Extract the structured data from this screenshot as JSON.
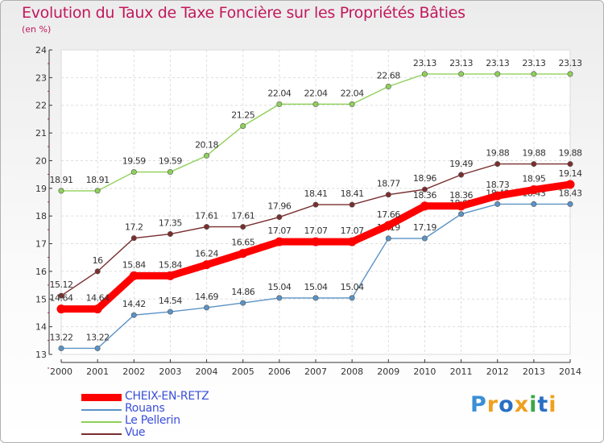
{
  "title": "Evolution du Taux de Taxe Foncière sur les Propriétés Bâties",
  "subtitle": "(en %)",
  "logo": "Proxiti",
  "chart_data": {
    "type": "line",
    "title": "Evolution du Taux de Taxe Foncière sur les Propriétés Bâties",
    "subtitle": "(en %)",
    "x": [
      "2000",
      "2001",
      "2002",
      "2003",
      "2004",
      "2005",
      "2006",
      "2007",
      "2008",
      "2009",
      "2010",
      "2011",
      "2012",
      "2013",
      "2014"
    ],
    "yticks": [
      "13",
      "14",
      "15",
      "16",
      "17",
      "18",
      "19",
      "20",
      "21",
      "22",
      "23",
      "24"
    ],
    "ylim": [
      13,
      24
    ],
    "grid": true,
    "legend_position": "bottom-left",
    "series": [
      {
        "name": "CHEIX-EN-RETZ",
        "color": "#ff0000",
        "emphasis": true,
        "values": [
          14.64,
          14.64,
          15.84,
          15.84,
          16.24,
          16.65,
          17.07,
          17.07,
          17.07,
          17.66,
          18.36,
          18.36,
          18.73,
          18.95,
          19.14
        ],
        "labels": [
          "14.64",
          "14.64",
          "15.84",
          "15.84",
          "16.24",
          "16.65",
          "17.07",
          "17.07",
          "17.07",
          "17.66",
          "18.36",
          "18.36",
          "18.73",
          "18.95",
          "19.14"
        ]
      },
      {
        "name": "Rouans",
        "color": "#5b93c5",
        "values": [
          13.22,
          13.22,
          14.42,
          14.54,
          14.69,
          14.86,
          15.04,
          15.04,
          15.04,
          17.19,
          17.19,
          18.07,
          18.43,
          18.43,
          18.43
        ],
        "labels": [
          "13.22",
          "13.22",
          "14.42",
          "14.54",
          "14.69",
          "14.86",
          "15.04",
          "15.04",
          "15.04",
          "17.19",
          "17.19",
          "18.07",
          "18.43",
          "18.43",
          "18.43"
        ]
      },
      {
        "name": "Le Pellerin",
        "color": "#8fd05a",
        "values": [
          18.91,
          18.91,
          19.59,
          19.59,
          20.18,
          21.25,
          22.04,
          22.04,
          22.04,
          22.68,
          23.13,
          23.13,
          23.13,
          23.13,
          23.13
        ],
        "labels": [
          "18.91",
          "18.91",
          "19.59",
          "19.59",
          "20.18",
          "21.25",
          "22.04",
          "22.04",
          "22.04",
          "22.68",
          "23.13",
          "23.13",
          "23.13",
          "23.13",
          "23.13"
        ]
      },
      {
        "name": "Vue",
        "color": "#7a2e2e",
        "values": [
          15.12,
          16,
          17.2,
          17.35,
          17.61,
          17.61,
          17.96,
          18.41,
          18.41,
          18.77,
          18.96,
          19.49,
          19.88,
          19.88,
          19.88
        ],
        "labels": [
          "15.12",
          "16",
          "17.2",
          "17.35",
          "17.61",
          "17.61",
          "17.96",
          "18.41",
          "18.41",
          "18.77",
          "18.96",
          "19.49",
          "19.88",
          "19.88",
          "19.88"
        ]
      }
    ]
  }
}
